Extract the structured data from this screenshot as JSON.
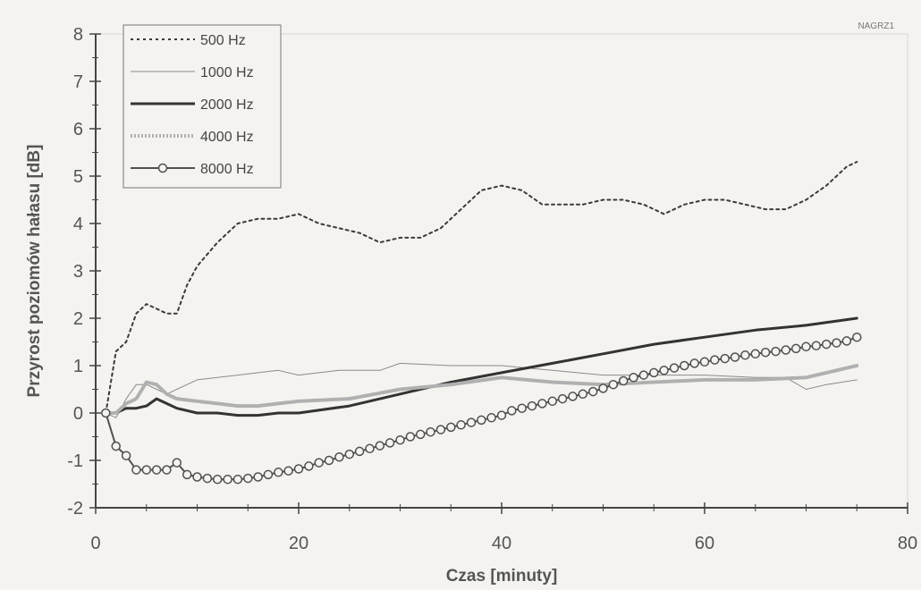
{
  "chart_data": {
    "type": "line",
    "title": "",
    "tag": "NAGRZ1",
    "xlabel": "Czas [minuty]",
    "ylabel": "Przyrost poziomów hałasu [dB]",
    "xlim": [
      0,
      80
    ],
    "ylim": [
      -2,
      8
    ],
    "xticks": [
      0,
      20,
      40,
      60,
      80
    ],
    "yticks": [
      -2,
      -1,
      0,
      1,
      2,
      3,
      4,
      5,
      6,
      7,
      8
    ],
    "grid": false,
    "legend_position": "top-left",
    "series": [
      {
        "name": "500 Hz",
        "style": "dotted",
        "color": "#3a3a3a",
        "x": [
          1,
          2,
          3,
          4,
          5,
          6,
          7,
          8,
          9,
          10,
          12,
          14,
          16,
          18,
          20,
          22,
          24,
          26,
          28,
          30,
          32,
          34,
          36,
          38,
          40,
          42,
          44,
          46,
          48,
          50,
          52,
          54,
          56,
          58,
          60,
          62,
          64,
          66,
          68,
          70,
          72,
          74,
          75
        ],
        "y": [
          0,
          1.3,
          1.5,
          2.1,
          2.3,
          2.2,
          2.1,
          2.1,
          2.7,
          3.1,
          3.6,
          4.0,
          4.1,
          4.1,
          4.2,
          4.0,
          3.9,
          3.8,
          3.6,
          3.7,
          3.7,
          3.9,
          4.3,
          4.7,
          4.8,
          4.7,
          4.4,
          4.4,
          4.4,
          4.5,
          4.5,
          4.4,
          4.2,
          4.4,
          4.5,
          4.5,
          4.4,
          4.3,
          4.3,
          4.5,
          4.8,
          5.2,
          5.3
        ]
      },
      {
        "name": "1000 Hz",
        "style": "thin",
        "color": "#8a8a8a",
        "x": [
          1,
          2,
          3,
          4,
          5,
          6,
          7,
          8,
          9,
          10,
          12,
          14,
          16,
          18,
          20,
          22,
          24,
          26,
          28,
          30,
          35,
          40,
          45,
          50,
          55,
          60,
          65,
          68,
          70,
          72,
          75
        ],
        "y": [
          0,
          -0.1,
          0.3,
          0.6,
          0.6,
          0.5,
          0.4,
          0.5,
          0.6,
          0.7,
          0.75,
          0.8,
          0.85,
          0.9,
          0.8,
          0.85,
          0.9,
          0.9,
          0.9,
          1.05,
          1.0,
          1.0,
          0.9,
          0.8,
          0.8,
          0.8,
          0.75,
          0.75,
          0.5,
          0.6,
          0.7
        ]
      },
      {
        "name": "2000 Hz",
        "style": "thick",
        "color": "#333333",
        "x": [
          1,
          2,
          3,
          4,
          5,
          6,
          7,
          8,
          10,
          12,
          14,
          16,
          18,
          20,
          25,
          30,
          35,
          40,
          45,
          50,
          55,
          60,
          65,
          70,
          75
        ],
        "y": [
          0,
          0,
          0.1,
          0.1,
          0.15,
          0.3,
          0.2,
          0.1,
          0.0,
          0.0,
          -0.05,
          -0.05,
          0.0,
          0.0,
          0.15,
          0.4,
          0.65,
          0.85,
          1.05,
          1.25,
          1.45,
          1.6,
          1.75,
          1.85,
          2.0
        ]
      },
      {
        "name": "4000 Hz",
        "style": "dotted-thick",
        "color": "#b0b0b0",
        "x": [
          1,
          2,
          3,
          4,
          5,
          6,
          7,
          8,
          10,
          12,
          14,
          16,
          18,
          20,
          25,
          30,
          35,
          40,
          45,
          50,
          55,
          60,
          65,
          70,
          75
        ],
        "y": [
          0,
          0,
          0.2,
          0.3,
          0.65,
          0.6,
          0.4,
          0.3,
          0.25,
          0.2,
          0.15,
          0.15,
          0.2,
          0.25,
          0.3,
          0.5,
          0.6,
          0.75,
          0.65,
          0.6,
          0.65,
          0.7,
          0.7,
          0.75,
          1.0
        ]
      },
      {
        "name": "8000 Hz",
        "style": "line-markers",
        "color": "#505050",
        "x": [
          1,
          2,
          3,
          4,
          5,
          6,
          7,
          8,
          9,
          10,
          11,
          12,
          13,
          14,
          15,
          16,
          17,
          18,
          19,
          20,
          21,
          22,
          23,
          24,
          25,
          26,
          27,
          28,
          29,
          30,
          31,
          32,
          33,
          34,
          35,
          36,
          37,
          38,
          39,
          40,
          41,
          42,
          43,
          44,
          45,
          46,
          47,
          48,
          49,
          50,
          51,
          52,
          53,
          54,
          55,
          56,
          57,
          58,
          59,
          60,
          61,
          62,
          63,
          64,
          65,
          66,
          67,
          68,
          69,
          70,
          71,
          72,
          73,
          74,
          75
        ],
        "y": [
          0,
          -0.7,
          -0.9,
          -1.2,
          -1.2,
          -1.2,
          -1.2,
          -1.05,
          -1.3,
          -1.35,
          -1.38,
          -1.4,
          -1.4,
          -1.4,
          -1.38,
          -1.35,
          -1.3,
          -1.25,
          -1.22,
          -1.18,
          -1.12,
          -1.05,
          -1.0,
          -0.93,
          -0.87,
          -0.81,
          -0.75,
          -0.69,
          -0.63,
          -0.57,
          -0.5,
          -0.45,
          -0.4,
          -0.35,
          -0.3,
          -0.25,
          -0.2,
          -0.15,
          -0.1,
          -0.05,
          0.05,
          0.1,
          0.15,
          0.2,
          0.25,
          0.3,
          0.35,
          0.4,
          0.45,
          0.52,
          0.6,
          0.68,
          0.75,
          0.8,
          0.85,
          0.9,
          0.95,
          1.0,
          1.05,
          1.08,
          1.12,
          1.15,
          1.18,
          1.22,
          1.25,
          1.28,
          1.3,
          1.33,
          1.36,
          1.4,
          1.42,
          1.45,
          1.48,
          1.52,
          1.6
        ]
      }
    ]
  }
}
